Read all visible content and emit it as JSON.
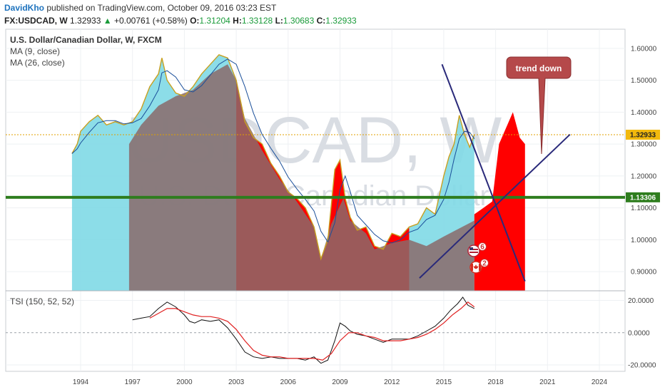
{
  "header": {
    "author": "DavidKho",
    "published": " published on TradingView.com, October 09, 2016 03:23 EST",
    "symbol": "FX:USDCAD, W",
    "last": "1.32933",
    "change": "+0.00761 (+0.58%)",
    "open_label": "O:",
    "open": "1.31204",
    "high_label": "H:",
    "high": "1.33128",
    "low_label": "L:",
    "low": "1.30683",
    "close_label": "C:",
    "close": "1.32933"
  },
  "legend": {
    "title": "U.S. Dollar/Canadian Dollar, W, FXCM",
    "ma1": "MA (9, close)",
    "ma2": "MA (26, close)",
    "tsi": "TSI (150, 52, 52)"
  },
  "watermark": {
    "line1": "USDCAD, W",
    "line2": "U.S. Dollar/Canadian Dollar"
  },
  "colors": {
    "price": "#c8a020",
    "teal_fill": "#7fd9e6",
    "gray_fill": "#8a6a6a",
    "red_fill": "#ff0000",
    "support": "#2e7d1e",
    "trendline": "#2a2a7a",
    "ma": "#1a4f9a",
    "annot_bg": "#b5494a"
  },
  "annotation": {
    "text": "trend down"
  },
  "markers": [
    {
      "flag": "us-flag-icon",
      "count": "6"
    },
    {
      "flag": "ca-flag-icon",
      "count": "2"
    }
  ],
  "chart_data": [
    {
      "type": "area",
      "title": "U.S. Dollar/Canadian Dollar, W, FXCM",
      "x_ticks": [
        "1994",
        "1997",
        "2000",
        "2003",
        "2006",
        "2009",
        "2012",
        "2015",
        "2018",
        "2021",
        "2024"
      ],
      "y_ticks": [
        "1.60000",
        "1.50000",
        "1.40000",
        "1.30000",
        "1.20000",
        "1.10000",
        "1.00000",
        "0.90000"
      ],
      "ylim": [
        0.84,
        1.66
      ],
      "last_price": 1.32933,
      "last_price_label": "1.32933",
      "support_level": 1.13306,
      "support_label": "1.13306",
      "series": [
        {
          "x": [
            1993.5,
            1993.8,
            1994.0,
            1994.5,
            1995.0,
            1995.5,
            1996.0,
            1996.5,
            1997.0,
            1997.5,
            1998.0,
            1998.5,
            1998.7,
            1999.0,
            1999.5,
            2000.0,
            2000.5,
            2001.0,
            2001.5,
            2002.0,
            2002.5,
            2003.0,
            2003.5,
            2004.0,
            2004.5,
            2005.0,
            2005.5,
            2006.0,
            2006.5,
            2007.0,
            2007.5,
            2007.9,
            2008.3,
            2008.7,
            2009.0,
            2009.3,
            2009.6,
            2010.0,
            2010.5,
            2011.0,
            2011.5,
            2012.0,
            2012.5,
            2013.0,
            2013.5,
            2014.0,
            2014.5,
            2015.0,
            2015.3,
            2015.6,
            2015.9,
            2016.2,
            2016.5,
            2016.77
          ],
          "y": [
            1.27,
            1.3,
            1.34,
            1.37,
            1.39,
            1.36,
            1.37,
            1.36,
            1.37,
            1.41,
            1.48,
            1.52,
            1.57,
            1.5,
            1.46,
            1.45,
            1.48,
            1.52,
            1.55,
            1.58,
            1.57,
            1.5,
            1.37,
            1.32,
            1.3,
            1.24,
            1.2,
            1.15,
            1.13,
            1.1,
            1.04,
            0.94,
            1.0,
            1.22,
            1.25,
            1.13,
            1.07,
            1.03,
            1.04,
            0.98,
            0.97,
            1.02,
            1.01,
            1.04,
            1.05,
            1.1,
            1.08,
            1.2,
            1.26,
            1.3,
            1.39,
            1.33,
            1.29,
            1.33
          ]
        }
      ],
      "trendlines": [
        {
          "name": "descending",
          "x": [
            2014.9,
            2019.7
          ],
          "y": [
            1.55,
            0.87
          ]
        },
        {
          "name": "ascending",
          "x": [
            2013.6,
            2022.3
          ],
          "y": [
            0.88,
            1.33
          ]
        }
      ]
    },
    {
      "type": "line",
      "title": "TSI (150, 52, 52)",
      "y_ticks": [
        "20.0000",
        "0.0000",
        "-20.0000"
      ],
      "ylim": [
        -24,
        26
      ],
      "series": [
        {
          "name": "TSI",
          "color": "#111111",
          "x": [
            1997.0,
            1997.5,
            1998.0,
            1998.5,
            1999.0,
            1999.5,
            2000.0,
            2000.3,
            2000.6,
            2001.0,
            2001.5,
            2002.0,
            2002.5,
            2003.0,
            2003.5,
            2004.0,
            2004.5,
            2005.0,
            2005.5,
            2006.0,
            2006.5,
            2007.0,
            2007.5,
            2007.9,
            2008.3,
            2008.7,
            2009.0,
            2009.3,
            2009.6,
            2010.0,
            2010.5,
            2011.0,
            2011.5,
            2012.0,
            2012.5,
            2013.0,
            2013.5,
            2014.0,
            2014.5,
            2015.0,
            2015.4,
            2015.8,
            2016.1,
            2016.4,
            2016.77
          ],
          "y": [
            8,
            9,
            10,
            15,
            19,
            16,
            11,
            7,
            6,
            8,
            7,
            8,
            3,
            -4,
            -12,
            -15,
            -16,
            -15,
            -16,
            -16,
            -16,
            -17,
            -15,
            -19,
            -17,
            -5,
            6,
            4,
            1,
            -1,
            -2,
            -4,
            -6,
            -4,
            -4,
            -4,
            -2,
            1,
            4,
            9,
            14,
            18,
            22,
            17,
            15
          ]
        },
        {
          "name": "Signal",
          "color": "#e02020",
          "x": [
            1998.0,
            1998.5,
            1999.0,
            1999.5,
            2000.0,
            2000.5,
            2001.0,
            2001.5,
            2002.0,
            2002.5,
            2003.0,
            2003.5,
            2004.0,
            2004.5,
            2005.0,
            2005.5,
            2006.0,
            2006.5,
            2007.0,
            2007.5,
            2008.0,
            2008.5,
            2009.0,
            2009.5,
            2010.0,
            2010.5,
            2011.0,
            2011.5,
            2012.0,
            2012.5,
            2013.0,
            2013.5,
            2014.0,
            2014.5,
            2015.0,
            2015.5,
            2016.0,
            2016.4,
            2016.77
          ],
          "y": [
            9,
            12,
            15,
            15,
            13,
            11,
            10,
            10,
            9,
            7,
            2,
            -5,
            -11,
            -14,
            -15,
            -15,
            -16,
            -16,
            -16,
            -16,
            -17,
            -13,
            -5,
            0,
            0,
            -2,
            -3,
            -5,
            -5,
            -5,
            -4,
            -3,
            -1,
            2,
            6,
            11,
            15,
            19,
            16
          ]
        }
      ]
    }
  ]
}
